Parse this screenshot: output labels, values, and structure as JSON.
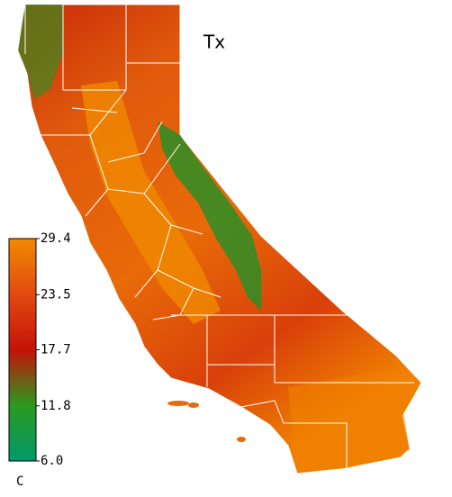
{
  "map": {
    "title": "Tx",
    "colorbar": {
      "unit": "C",
      "lim": [
        6.0,
        29.4
      ],
      "ticks": [
        29.4,
        23.5,
        17.7,
        11.8,
        {
          "value": 6.0,
          "label": "6.0"
        }
      ],
      "colors": [
        "#f08a00",
        "#e24a10",
        "#c41208",
        "#2a9a20",
        "#009a6a"
      ]
    }
  }
}
